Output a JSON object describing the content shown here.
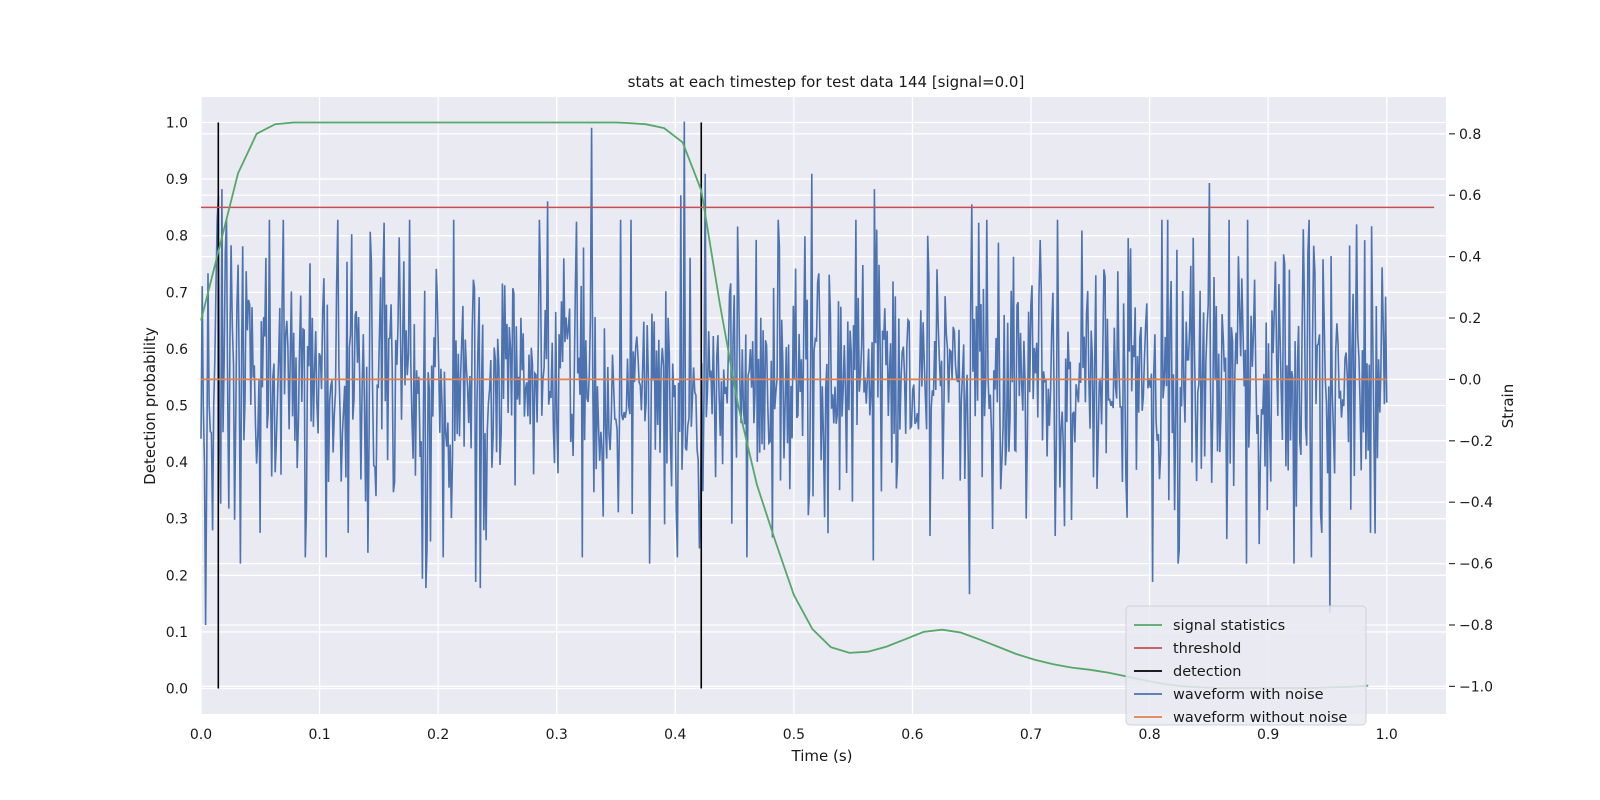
{
  "chart_data": {
    "type": "line",
    "title": "stats at each timestep for test data 144 [signal=0.0]",
    "xlabel": "Time (s)",
    "ylabel": "Detection probability",
    "y2label": "Strain",
    "xlim": [
      0.0,
      1.05
    ],
    "ylim": [
      -0.045,
      1.045
    ],
    "y2lim": [
      -1.09,
      0.92
    ],
    "xticks": [
      "0.0",
      "0.1",
      "0.2",
      "0.3",
      "0.4",
      "0.5",
      "0.6",
      "0.7",
      "0.8",
      "0.9",
      "1.0"
    ],
    "yticks": [
      "0.0",
      "0.1",
      "0.2",
      "0.3",
      "0.4",
      "0.5",
      "0.6",
      "0.7",
      "0.8",
      "0.9",
      "1.0"
    ],
    "y2ticks": [
      "−1.0",
      "−0.8",
      "−0.6",
      "−0.4",
      "−0.2",
      "0.0",
      "0.2",
      "0.4",
      "0.6",
      "0.8"
    ],
    "grid": true,
    "legend_position": "lower-right",
    "colors": {
      "background": "#eaeaf2",
      "grid": "#ffffff",
      "signal": "#55a868",
      "threshold": "#c44e52",
      "detection": "#000000",
      "noisy": "#4c72b0",
      "clean": "#dd8452"
    },
    "legend": [
      {
        "key": "signal",
        "label": "signal statistics"
      },
      {
        "key": "threshold",
        "label": "threshold"
      },
      {
        "key": "detection",
        "label": "detection"
      },
      {
        "key": "noisy",
        "label": "waveform with noise"
      },
      {
        "key": "clean",
        "label": "waveform without noise"
      }
    ],
    "signal_statistics": {
      "x": [
        0.0,
        0.0156,
        0.0312,
        0.0469,
        0.0625,
        0.0781,
        0.0938,
        0.1094,
        0.125,
        0.2,
        0.3,
        0.35,
        0.3594,
        0.375,
        0.3906,
        0.4062,
        0.4219,
        0.4375,
        0.4531,
        0.4688,
        0.4844,
        0.5,
        0.5156,
        0.5312,
        0.5469,
        0.5625,
        0.5781,
        0.5938,
        0.6094,
        0.625,
        0.6406,
        0.6562,
        0.6719,
        0.6875,
        0.7031,
        0.7188,
        0.7344,
        0.75,
        0.7656,
        0.7812,
        0.7969,
        0.8125,
        0.8281,
        0.8438,
        0.8594,
        0.875,
        0.8906,
        0.9062,
        0.9219,
        0.9375,
        0.9531,
        0.9688,
        0.9844
      ],
      "y": [
        0.65,
        0.78,
        0.91,
        0.98,
        0.997,
        1.0,
        1.0,
        1.0,
        1.0,
        1.0,
        1.0,
        1.0,
        0.999,
        0.997,
        0.99,
        0.965,
        0.88,
        0.68,
        0.5,
        0.36,
        0.26,
        0.165,
        0.105,
        0.073,
        0.063,
        0.065,
        0.074,
        0.087,
        0.1,
        0.104,
        0.099,
        0.087,
        0.074,
        0.061,
        0.051,
        0.043,
        0.037,
        0.033,
        0.028,
        0.021,
        0.014,
        0.008,
        0.004,
        0.002,
        0.001,
        0.001,
        0.001,
        0.001,
        0.001,
        0.001,
        0.002,
        0.003,
        0.005
      ]
    },
    "threshold": {
      "x": [
        0.0,
        1.04
      ],
      "value": 0.85
    },
    "detections": [
      {
        "x": 0.0146,
        "y": [
          0.0,
          1.0
        ]
      },
      {
        "x": 0.4219,
        "y": [
          0.0,
          1.0
        ]
      }
    ],
    "waveform_without_noise": {
      "x": [
        0.0,
        1.0
      ],
      "y": [
        0.0,
        0.0
      ]
    },
    "waveform_with_noise": {
      "sample_count": 1024,
      "x_range": [
        0.0,
        1.0
      ],
      "notable_points": [
        {
          "x": 0.004,
          "y": -0.8
        },
        {
          "x": 0.015,
          "y": 0.6
        },
        {
          "x": 0.018,
          "y": 0.62
        },
        {
          "x": 0.033,
          "y": -0.6
        },
        {
          "x": 0.05,
          "y": -0.5
        },
        {
          "x": 0.124,
          "y": -0.5
        },
        {
          "x": 0.187,
          "y": -0.65
        },
        {
          "x": 0.19,
          "y": -0.68
        },
        {
          "x": 0.232,
          "y": -0.66
        },
        {
          "x": 0.236,
          "y": -0.68
        },
        {
          "x": 0.292,
          "y": 0.58
        },
        {
          "x": 0.329,
          "y": 0.82
        },
        {
          "x": 0.378,
          "y": -0.6
        },
        {
          "x": 0.405,
          "y": 0.6
        },
        {
          "x": 0.408,
          "y": 0.84
        },
        {
          "x": 0.418,
          "y": -0.23
        },
        {
          "x": 0.425,
          "y": 0.67
        },
        {
          "x": 0.448,
          "y": -0.47
        },
        {
          "x": 0.515,
          "y": 0.67
        },
        {
          "x": 0.567,
          "y": -0.59
        },
        {
          "x": 0.568,
          "y": 0.62
        },
        {
          "x": 0.615,
          "y": -0.51
        },
        {
          "x": 0.648,
          "y": -0.7
        },
        {
          "x": 0.65,
          "y": 0.57
        },
        {
          "x": 0.72,
          "y": -0.51
        },
        {
          "x": 0.803,
          "y": -0.66
        },
        {
          "x": 0.824,
          "y": -0.6
        },
        {
          "x": 0.85,
          "y": 0.64
        },
        {
          "x": 0.882,
          "y": -0.6
        },
        {
          "x": 0.922,
          "y": -0.6
        },
        {
          "x": 0.945,
          "y": -0.5
        },
        {
          "x": 0.952,
          "y": -0.76
        },
        {
          "x": 0.986,
          "y": -0.5
        }
      ]
    }
  }
}
